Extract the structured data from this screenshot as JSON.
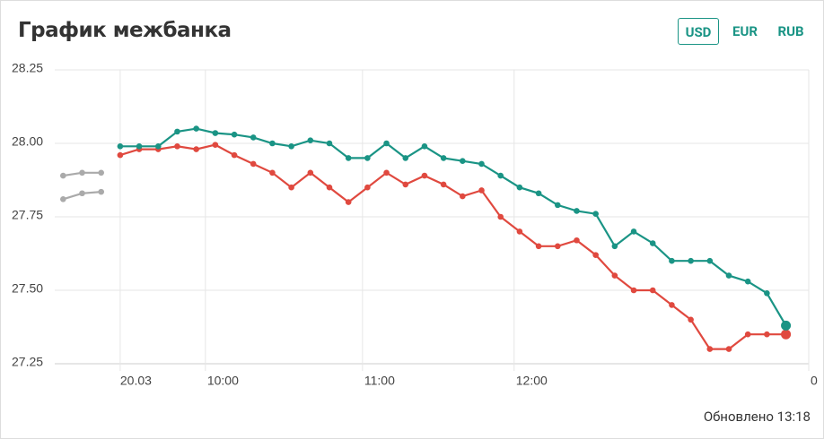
{
  "header": {
    "title": "График межбанка",
    "buttons": [
      "USD",
      "EUR",
      "RUB"
    ],
    "selected": 0
  },
  "chart_data": {
    "type": "line",
    "xlim": [
      -3.44,
      36.2
    ],
    "xticks": [
      {
        "value": 0,
        "label": "20.03"
      },
      {
        "value": 4.48,
        "label": "10:00"
      },
      {
        "value": 12.74,
        "label": "11:00"
      },
      {
        "value": 20.71,
        "label": "12:00"
      },
      {
        "value": 36.2,
        "label": "0"
      }
    ],
    "ylim": [
      27.25,
      28.25
    ],
    "yticks": [
      {
        "value": 27.25,
        "label": "27.25"
      },
      {
        "value": 27.5,
        "label": "27.50"
      },
      {
        "value": 27.75,
        "label": "27.75"
      },
      {
        "value": 28,
        "label": "28.00"
      },
      {
        "value": 28.25,
        "label": "28.25"
      }
    ],
    "grid": true,
    "series": [
      {
        "color": "#aaaaaa",
        "x": [
          -3,
          -2,
          -1
        ],
        "values": [
          27.89,
          27.9,
          27.9
        ]
      },
      {
        "color": "#aaaaaa",
        "x": [
          -3,
          -2,
          -1
        ],
        "values": [
          27.81,
          27.83,
          27.835
        ]
      },
      {
        "color": "#e0493f",
        "x": [
          0,
          1,
          2,
          3,
          4,
          5,
          6,
          7,
          8,
          9,
          10,
          11,
          12,
          13,
          14,
          15,
          16,
          17,
          18,
          19,
          20,
          21,
          22,
          23,
          24,
          25,
          26,
          27,
          28,
          29,
          30,
          31,
          32,
          33,
          34,
          35
        ],
        "values": [
          27.96,
          27.98,
          27.98,
          27.99,
          27.98,
          27.995,
          27.96,
          27.93,
          27.9,
          27.85,
          27.9,
          27.85,
          27.8,
          27.85,
          27.9,
          27.86,
          27.89,
          27.86,
          27.82,
          27.84,
          27.75,
          27.7,
          27.65,
          27.65,
          27.67,
          27.62,
          27.55,
          27.5,
          27.5,
          27.45,
          27.4,
          27.3,
          27.3,
          27.35,
          27.35,
          27.35
        ]
      },
      {
        "color": "#1a9485",
        "x": [
          0,
          1,
          2,
          3,
          4,
          5,
          6,
          7,
          8,
          9,
          10,
          11,
          12,
          13,
          14,
          15,
          16,
          17,
          18,
          19,
          20,
          21,
          22,
          23,
          24,
          25,
          26,
          27,
          28,
          29,
          30,
          31,
          32,
          33,
          34,
          35
        ],
        "values": [
          27.99,
          27.99,
          27.99,
          28.04,
          28.05,
          28.035,
          28.03,
          28.02,
          28.0,
          27.99,
          28.01,
          28.0,
          27.95,
          27.95,
          28.0,
          27.95,
          27.99,
          27.95,
          27.94,
          27.93,
          27.89,
          27.85,
          27.83,
          27.79,
          27.77,
          27.76,
          27.65,
          27.7,
          27.66,
          27.6,
          27.6,
          27.6,
          27.55,
          27.53,
          27.49,
          27.38
        ]
      }
    ]
  },
  "footer": "Обновлено 13:18"
}
